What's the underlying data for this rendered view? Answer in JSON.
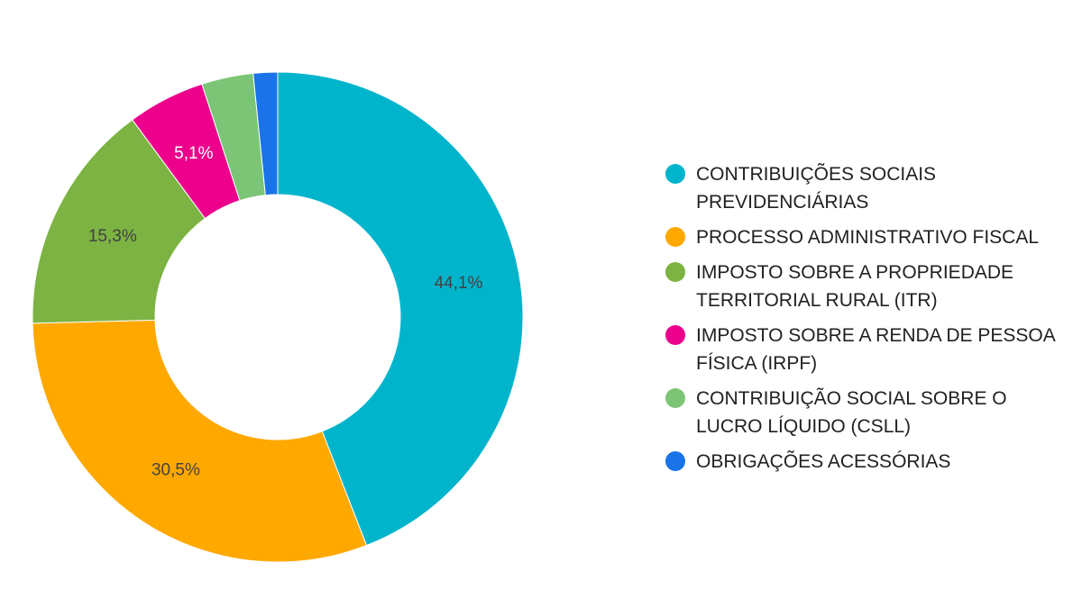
{
  "chart_data": {
    "type": "pie",
    "donut": true,
    "legend_position": "right",
    "categories": [
      "CONTRIBUIÇÕES SOCIAIS PREVIDENCIÁRIAS",
      "PROCESSO ADMINISTRATIVO FISCAL",
      "IMPOSTO SOBRE A PROPRIEDADE TERRITORIAL RURAL (ITR)",
      "IMPOSTO SOBRE A RENDA DE PESSOA FÍSICA (IRPF)",
      "CONTRIBUIÇÃO SOCIAL SOBRE O LUCRO LÍQUIDO (CSLL)",
      "OBRIGAÇÕES ACESSÓRIAS"
    ],
    "values": [
      44.1,
      30.5,
      15.3,
      5.1,
      3.4,
      1.6
    ],
    "data_labels": [
      "44,1%",
      "30,5%",
      "15,3%",
      "5,1%",
      "",
      ""
    ],
    "colors": [
      "#00B4CC",
      "#FFA800",
      "#7CB342",
      "#EC008C",
      "#7CC576",
      "#1A73E8"
    ],
    "label_colors": [
      "#424242",
      "#424242",
      "#424242",
      "#ffffff",
      "#ffffff",
      "#ffffff"
    ]
  }
}
